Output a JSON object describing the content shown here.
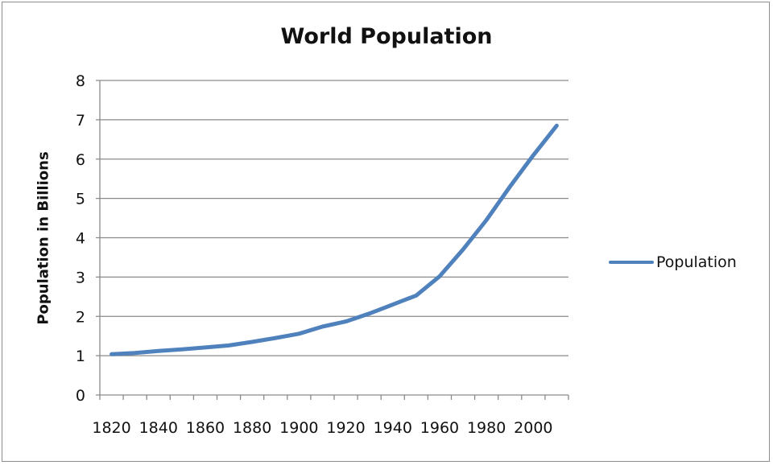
{
  "chart_data": {
    "type": "line",
    "title": "World Population",
    "xlabel": "",
    "ylabel": "Population in Billions",
    "x_tick_labels": [
      "1820",
      "1840",
      "1860",
      "1880",
      "1900",
      "1920",
      "1940",
      "1960",
      "1980",
      "2000"
    ],
    "y_tick_labels": [
      "0",
      "1",
      "2",
      "3",
      "4",
      "5",
      "6",
      "7",
      "8"
    ],
    "xlim": [
      1815,
      2015
    ],
    "ylim": [
      0,
      8
    ],
    "grid": true,
    "legend_position": "right",
    "series": [
      {
        "name": "Population",
        "color": "#4f81bd",
        "x": [
          1820,
          1830,
          1840,
          1850,
          1860,
          1870,
          1880,
          1890,
          1900,
          1910,
          1920,
          1930,
          1940,
          1950,
          1960,
          1970,
          1980,
          1990,
          2000,
          2010
        ],
        "y": [
          1.04,
          1.07,
          1.12,
          1.16,
          1.21,
          1.26,
          1.35,
          1.45,
          1.56,
          1.74,
          1.87,
          2.07,
          2.3,
          2.53,
          3.02,
          3.7,
          4.45,
          5.3,
          6.1,
          6.85
        ]
      }
    ]
  }
}
